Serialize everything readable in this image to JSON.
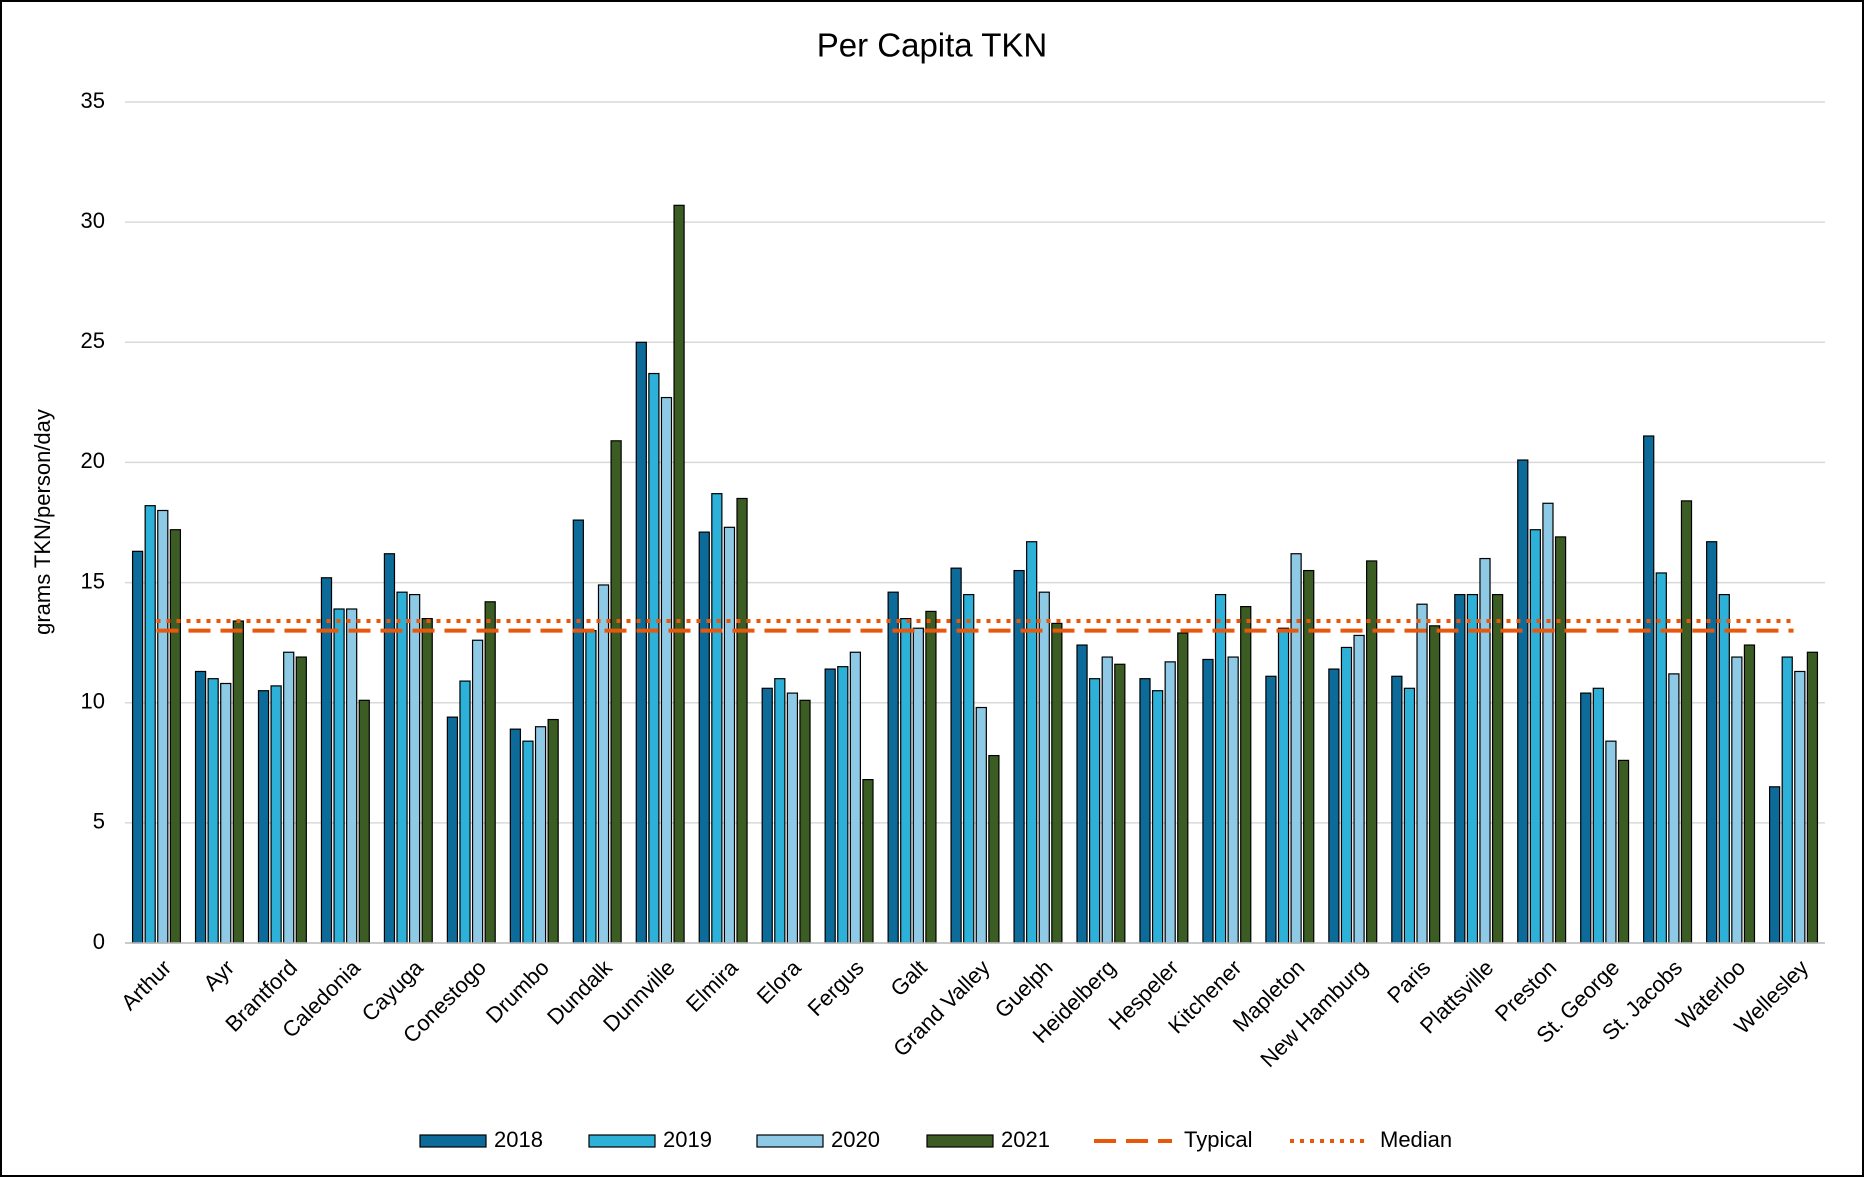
{
  "chart_data": {
    "type": "bar",
    "title": "Per Capita TKN",
    "y_label": "grams TKN/person/day",
    "categories": [
      "Arthur",
      "Ayr",
      "Brantford",
      "Caledonia",
      "Cayuga",
      "Conestogo",
      "Drumbo",
      "Dundalk",
      "Dunnville",
      "Elmira",
      "Elora",
      "Fergus",
      "Galt",
      "Grand Valley",
      "Guelph",
      "Heidelberg",
      "Hespeler",
      "Kitchener",
      "Mapleton",
      "New Hamburg",
      "Paris",
      "Plattsville",
      "Preston",
      "St. George",
      "St. Jacobs",
      "Waterloo",
      "Wellesley"
    ],
    "series": [
      {
        "name": "2018",
        "color": "#0d6b9a",
        "values": [
          16.3,
          11.3,
          10.5,
          15.2,
          16.2,
          9.4,
          8.9,
          17.6,
          25.0,
          17.1,
          10.6,
          11.4,
          14.6,
          15.6,
          15.5,
          12.4,
          11.0,
          11.8,
          11.1,
          11.4,
          11.1,
          14.5,
          20.1,
          10.4,
          21.1,
          16.7,
          6.5
        ]
      },
      {
        "name": "2019",
        "color": "#2eb1d8",
        "values": [
          18.2,
          11.0,
          10.7,
          13.9,
          14.6,
          10.9,
          8.4,
          13.0,
          23.7,
          18.7,
          11.0,
          11.5,
          13.5,
          14.5,
          16.7,
          11.0,
          10.5,
          14.5,
          13.1,
          12.3,
          10.6,
          14.5,
          17.2,
          10.6,
          15.4,
          14.5,
          11.9
        ]
      },
      {
        "name": "2020",
        "color": "#8ecae6",
        "values": [
          18.0,
          10.8,
          12.1,
          13.9,
          14.5,
          12.6,
          9.0,
          14.9,
          22.7,
          17.3,
          10.4,
          12.1,
          13.1,
          9.8,
          14.6,
          11.9,
          11.7,
          11.9,
          16.2,
          12.8,
          14.1,
          16.0,
          18.3,
          8.4,
          11.2,
          11.9,
          11.3
        ]
      },
      {
        "name": "2021",
        "color": "#3b5d23",
        "values": [
          17.2,
          13.4,
          11.9,
          10.1,
          13.5,
          14.2,
          9.3,
          20.9,
          30.7,
          18.5,
          10.1,
          6.8,
          13.8,
          7.8,
          13.3,
          11.6,
          12.9,
          14.0,
          15.5,
          15.9,
          13.2,
          14.5,
          16.9,
          7.6,
          18.4,
          12.4,
          12.1
        ]
      }
    ],
    "reference_lines": [
      {
        "name": "Typical",
        "value": 13.0,
        "color": "#e8580c",
        "style": "dashed"
      },
      {
        "name": "Median",
        "value": 13.4,
        "color": "#e8580c",
        "style": "dotted"
      }
    ],
    "ylim": [
      0,
      35
    ],
    "yticks": [
      0,
      5,
      10,
      15,
      20,
      25,
      30,
      35
    ],
    "grid": true,
    "legend": "bottom"
  }
}
